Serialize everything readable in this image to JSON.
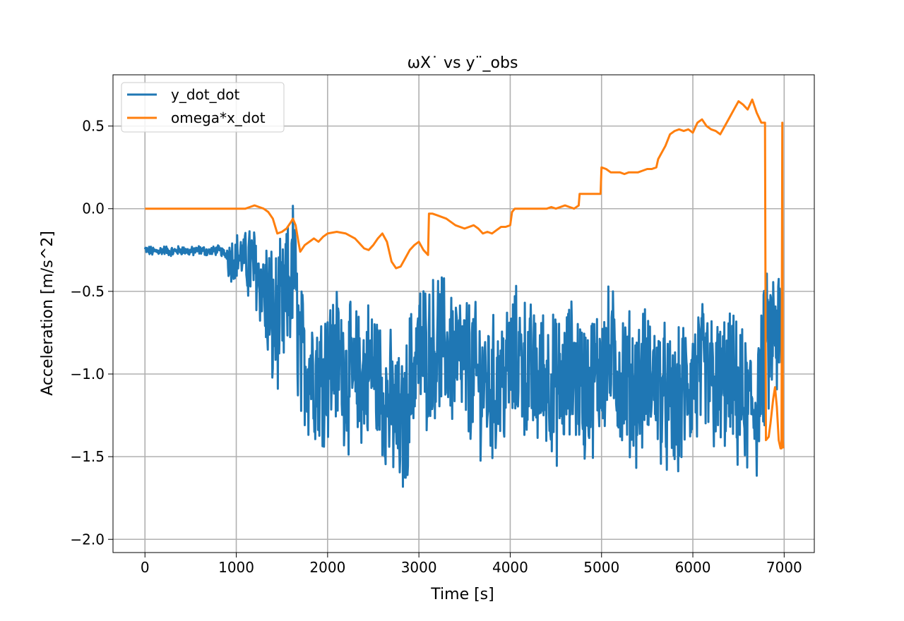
{
  "chart_data": {
    "type": "line",
    "title": "ωX˙ vs   y¨_obs",
    "xlabel": "Time [s]",
    "ylabel": "Acceleration [m/s^2]",
    "xlim": [
      -350,
      7330
    ],
    "ylim": [
      -2.08,
      0.81
    ],
    "x_ticks": [
      0,
      1000,
      2000,
      3000,
      4000,
      5000,
      6000,
      7000
    ],
    "x_tick_labels": [
      "0",
      "1000",
      "2000",
      "3000",
      "4000",
      "5000",
      "6000",
      "7000"
    ],
    "y_ticks": [
      -2.0,
      -1.5,
      -1.0,
      -0.5,
      0.0,
      0.5
    ],
    "y_tick_labels": [
      "−2.0",
      "−1.5",
      "−1.0",
      "−0.5",
      "0.0",
      "0.5"
    ],
    "grid": true,
    "legend_position": "top-left",
    "series": [
      {
        "name": "y_dot_dot",
        "color": "#1f77b4",
        "description_of_source": "noisy signal",
        "x": [
          0,
          100,
          200,
          300,
          400,
          500,
          600,
          700,
          800,
          900,
          950,
          1000,
          1100,
          1200,
          1300,
          1400,
          1500,
          1600,
          1640,
          1650,
          1700,
          1800,
          1900,
          2000,
          2100,
          2200,
          2300,
          2400,
          2500,
          2600,
          2700,
          2800,
          2850,
          2900,
          3000,
          3100,
          3200,
          3300,
          3400,
          3500,
          3600,
          3700,
          3800,
          3900,
          4000,
          4100,
          4200,
          4300,
          4400,
          4500,
          4600,
          4700,
          4800,
          4900,
          5000,
          5100,
          5200,
          5300,
          5400,
          5500,
          5600,
          5700,
          5800,
          5900,
          6000,
          6100,
          6200,
          6300,
          6400,
          6500,
          6600,
          6700,
          6800,
          6900,
          6980
        ],
        "values": [
          -0.25,
          -0.26,
          -0.25,
          -0.26,
          -0.25,
          -0.26,
          -0.25,
          -0.26,
          -0.25,
          -0.28,
          -0.3,
          -0.28,
          -0.3,
          -0.35,
          -0.5,
          -0.7,
          -0.65,
          -0.45,
          -0.3,
          -0.55,
          -0.9,
          -0.95,
          -1.0,
          -0.95,
          -0.9,
          -1.0,
          -1.05,
          -1.0,
          -0.95,
          -1.1,
          -1.2,
          -1.35,
          -1.3,
          -1.05,
          -0.85,
          -0.9,
          -0.8,
          -0.85,
          -0.9,
          -0.95,
          -1.0,
          -1.05,
          -1.1,
          -1.05,
          -0.95,
          -0.9,
          -1.0,
          -1.05,
          -1.0,
          -1.1,
          -1.05,
          -0.95,
          -1.1,
          -1.05,
          -0.95,
          -0.9,
          -1.0,
          -1.05,
          -1.1,
          -1.0,
          -1.05,
          -1.15,
          -1.25,
          -1.1,
          -1.05,
          -1.0,
          -1.05,
          -1.1,
          -1.05,
          -1.15,
          -1.2,
          -1.2,
          -0.85,
          -0.75,
          -0.8
        ],
        "noise_amplitude": 0.38
      },
      {
        "name": "omega*x_dot",
        "color": "#ff7f0e",
        "x": [
          0,
          100,
          200,
          300,
          400,
          500,
          600,
          700,
          800,
          900,
          1000,
          1100,
          1150,
          1200,
          1250,
          1300,
          1350,
          1400,
          1450,
          1500,
          1550,
          1600,
          1620,
          1650,
          1680,
          1700,
          1750,
          1800,
          1850,
          1900,
          1950,
          2000,
          2100,
          2200,
          2300,
          2400,
          2450,
          2500,
          2550,
          2600,
          2650,
          2700,
          2750,
          2800,
          2850,
          2900,
          2950,
          3000,
          3050,
          3100,
          3110,
          3150,
          3200,
          3300,
          3400,
          3500,
          3600,
          3650,
          3700,
          3750,
          3800,
          3850,
          3900,
          3950,
          4000,
          4020,
          4050,
          4100,
          4200,
          4300,
          4400,
          4450,
          4500,
          4600,
          4650,
          4700,
          4750,
          4760,
          4800,
          4900,
          4990,
          5000,
          5050,
          5100,
          5200,
          5250,
          5300,
          5400,
          5450,
          5500,
          5550,
          5600,
          5620,
          5650,
          5700,
          5750,
          5800,
          5850,
          5900,
          5950,
          6000,
          6050,
          6100,
          6150,
          6200,
          6250,
          6300,
          6350,
          6400,
          6450,
          6500,
          6550,
          6600,
          6650,
          6700,
          6750,
          6780,
          6790,
          6800,
          6830,
          6850,
          6880,
          6900,
          6920,
          6940,
          6960,
          6970,
          6980,
          6985,
          6990
        ],
        "values": [
          0.0,
          0.0,
          0.0,
          0.0,
          0.0,
          0.0,
          0.0,
          0.0,
          0.0,
          0.0,
          0.0,
          0.0,
          0.01,
          0.02,
          0.01,
          0.0,
          -0.02,
          -0.06,
          -0.15,
          -0.14,
          -0.12,
          -0.08,
          -0.06,
          -0.1,
          -0.2,
          -0.26,
          -0.22,
          -0.2,
          -0.18,
          -0.2,
          -0.17,
          -0.15,
          -0.14,
          -0.15,
          -0.18,
          -0.24,
          -0.25,
          -0.22,
          -0.18,
          -0.15,
          -0.2,
          -0.32,
          -0.36,
          -0.35,
          -0.3,
          -0.25,
          -0.22,
          -0.2,
          -0.25,
          -0.28,
          -0.03,
          -0.03,
          -0.04,
          -0.06,
          -0.1,
          -0.12,
          -0.1,
          -0.12,
          -0.15,
          -0.14,
          -0.15,
          -0.13,
          -0.11,
          -0.11,
          -0.1,
          -0.02,
          0.0,
          0.0,
          0.0,
          0.0,
          0.0,
          0.01,
          0.0,
          0.02,
          0.01,
          0.0,
          0.02,
          0.09,
          0.09,
          0.09,
          0.09,
          0.25,
          0.24,
          0.22,
          0.22,
          0.21,
          0.22,
          0.22,
          0.23,
          0.24,
          0.24,
          0.25,
          0.3,
          0.33,
          0.38,
          0.45,
          0.47,
          0.48,
          0.47,
          0.48,
          0.46,
          0.52,
          0.54,
          0.5,
          0.48,
          0.47,
          0.45,
          0.5,
          0.55,
          0.6,
          0.65,
          0.63,
          0.6,
          0.66,
          0.58,
          0.52,
          0.52,
          0.52,
          -1.4,
          -1.38,
          -1.3,
          -1.15,
          -1.08,
          -1.2,
          -1.4,
          -1.45,
          -1.45,
          0.52,
          -1.4,
          -1.45
        ],
        "noise_amplitude": 0.008
      }
    ]
  }
}
